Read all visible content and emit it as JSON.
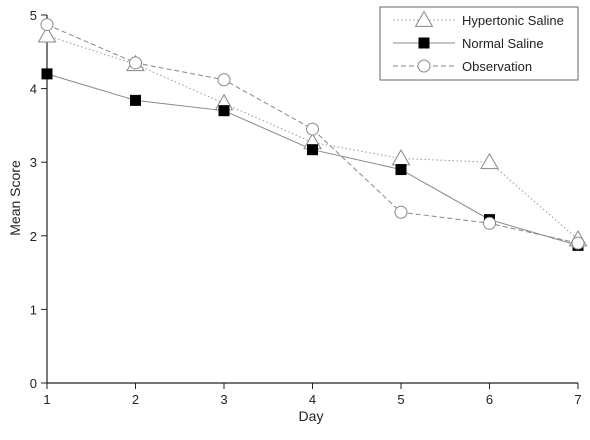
{
  "chart_data": {
    "type": "line",
    "xlabel": "Day",
    "ylabel": "Mean Score",
    "x": [
      1,
      2,
      3,
      4,
      5,
      6,
      7
    ],
    "xlim": [
      1,
      7
    ],
    "ylim": [
      0,
      5
    ],
    "x_ticks": [
      "1",
      "2",
      "3",
      "4",
      "5",
      "6",
      "7"
    ],
    "y_ticks": [
      "0",
      "1",
      "2",
      "3",
      "4",
      "5"
    ],
    "grid": false,
    "legend_position": "top-right",
    "series": [
      {
        "name": "Hypertonic Saline",
        "marker": "open-triangle",
        "line_style": "dotted",
        "color": "#999999",
        "values": [
          4.72,
          4.33,
          3.8,
          3.27,
          3.05,
          3.0,
          1.95
        ]
      },
      {
        "name": "Normal Saline",
        "marker": "filled-square",
        "line_style": "solid",
        "color": "#888888",
        "values": [
          4.2,
          3.84,
          3.7,
          3.17,
          2.9,
          2.22,
          1.87
        ]
      },
      {
        "name": "Observation",
        "marker": "open-circle",
        "line_style": "dashed",
        "color": "#888888",
        "values": [
          4.87,
          4.35,
          4.12,
          3.45,
          2.32,
          2.17,
          1.9
        ]
      }
    ]
  }
}
